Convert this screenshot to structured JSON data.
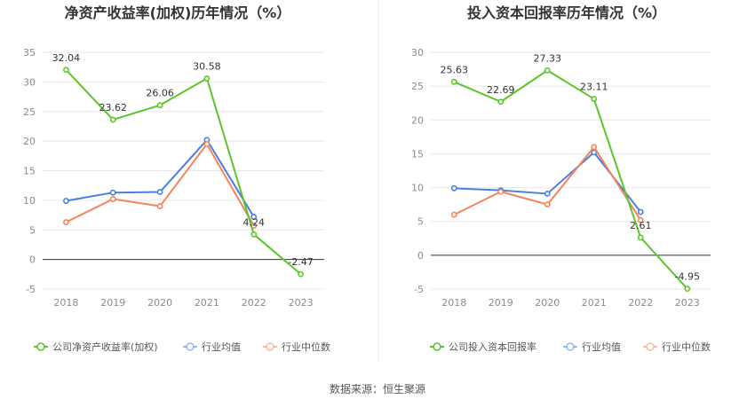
{
  "source": "数据来源：恒生聚源",
  "chart_data": [
    {
      "type": "line",
      "title": "净资产收益率(加权)历年情况（%）",
      "categories": [
        "2018",
        "2019",
        "2020",
        "2021",
        "2022",
        "2023"
      ],
      "ylim": [
        -5,
        35
      ],
      "yticks": [
        -5,
        0,
        5,
        10,
        15,
        20,
        25,
        30,
        35
      ],
      "grid": true,
      "legend": "bottom",
      "series": [
        {
          "name": "公司净资产收益率(加权)",
          "color": "#5cc52b",
          "labeled": true,
          "values": [
            32.04,
            23.62,
            26.06,
            30.58,
            4.24,
            -2.47
          ],
          "labels": [
            "32.04",
            "23.62",
            "26.06",
            "30.58",
            "4.24",
            "-2.47"
          ]
        },
        {
          "name": "行业均值",
          "color": "#4a7fe0",
          "labeled": false,
          "values": [
            9.9,
            11.3,
            11.4,
            20.2,
            7.2,
            null
          ]
        },
        {
          "name": "行业中位数",
          "color": "#f4845a",
          "labeled": false,
          "values": [
            6.3,
            10.2,
            9.0,
            19.5,
            5.7,
            null
          ]
        }
      ]
    },
    {
      "type": "line",
      "title": "投入资本回报率历年情况（%）",
      "categories": [
        "2018",
        "2019",
        "2020",
        "2021",
        "2022",
        "2023"
      ],
      "ylim": [
        -5,
        30
      ],
      "yticks": [
        -5,
        0,
        5,
        10,
        15,
        20,
        25,
        30
      ],
      "grid": true,
      "legend": "bottom",
      "series": [
        {
          "name": "公司投入资本回报率",
          "color": "#5cc52b",
          "labeled": true,
          "values": [
            25.63,
            22.69,
            27.33,
            23.11,
            2.61,
            -4.95
          ],
          "labels": [
            "25.63",
            "22.69",
            "27.33",
            "23.11",
            "2.61",
            "-4.95"
          ]
        },
        {
          "name": "行业均值",
          "color": "#4a7fe0",
          "labeled": false,
          "values": [
            9.9,
            9.6,
            9.1,
            15.2,
            6.4,
            null
          ]
        },
        {
          "name": "行业中位数",
          "color": "#f4845a",
          "labeled": false,
          "values": [
            6.0,
            9.4,
            7.5,
            16.0,
            5.2,
            null
          ]
        }
      ]
    }
  ]
}
